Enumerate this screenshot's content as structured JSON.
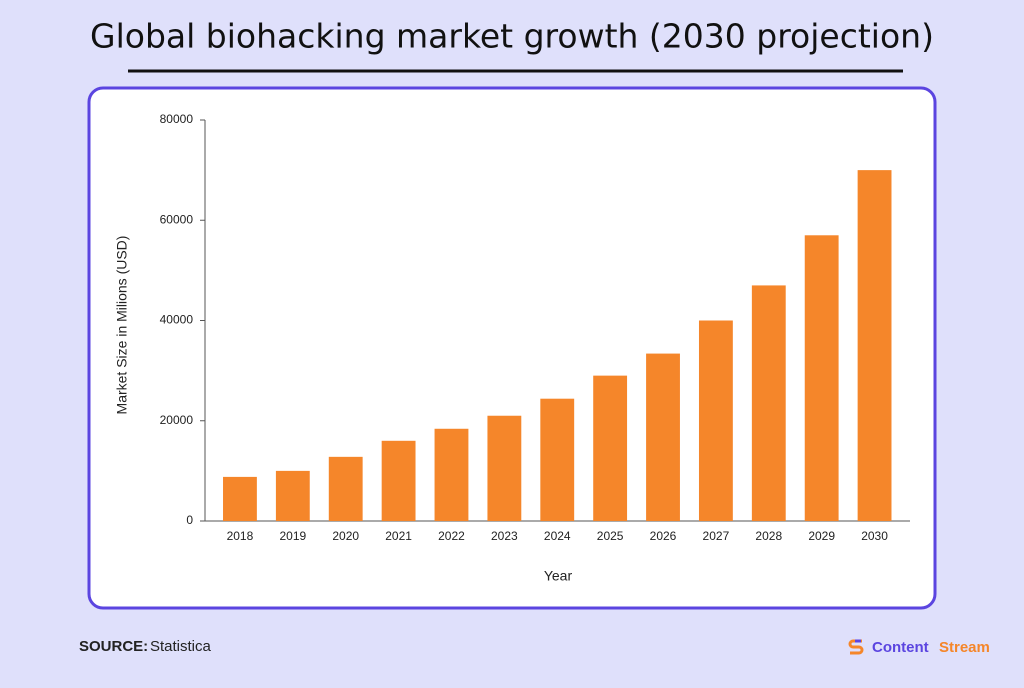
{
  "page_title": "Global biohacking market growth (2030 projection)",
  "chart_data": {
    "type": "bar",
    "categories": [
      "2018",
      "2019",
      "2020",
      "2021",
      "2022",
      "2023",
      "2024",
      "2025",
      "2026",
      "2027",
      "2028",
      "2029",
      "2030"
    ],
    "values": [
      8800,
      10000,
      12800,
      16000,
      18400,
      21000,
      24400,
      29000,
      33400,
      40000,
      47000,
      57000,
      70000
    ],
    "color": "#f5862a",
    "x_label": "Year",
    "y_label": "Market Size in Milions (USD)",
    "ylim": [
      0,
      80000
    ],
    "yticks": [
      0,
      20000,
      40000,
      60000,
      80000
    ],
    "grid": false
  },
  "footer": {
    "source_label": "SOURCE:",
    "source": "Statistica",
    "brand": [
      "Content",
      "Stream"
    ]
  }
}
